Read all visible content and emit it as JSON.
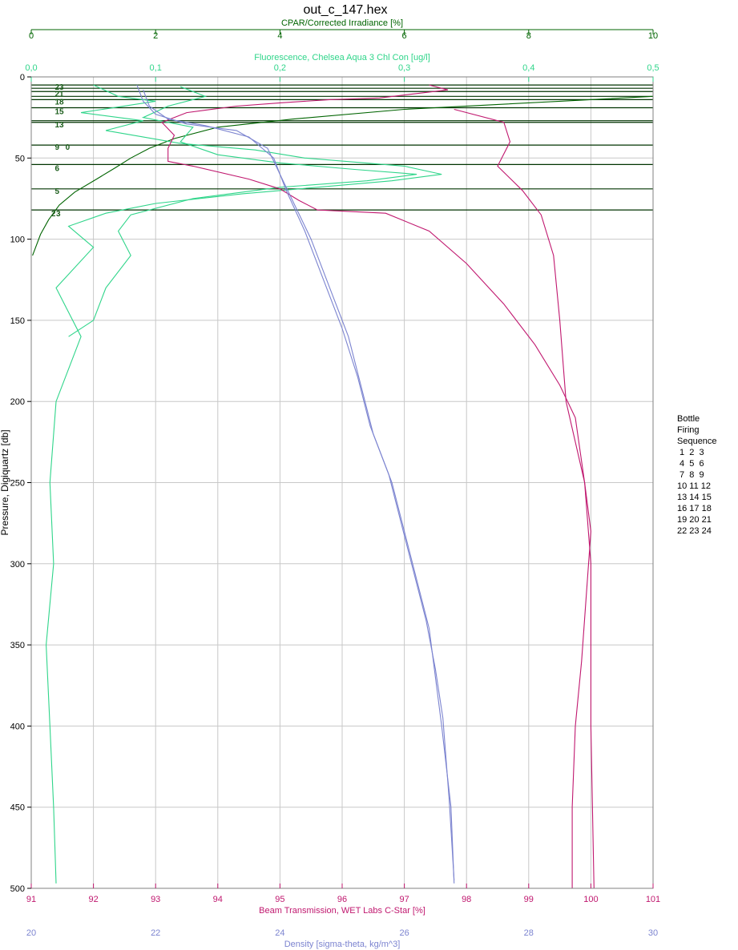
{
  "chart_data": {
    "type": "line",
    "title": "out_c_147.hex",
    "y_axis": {
      "label": "Pressure, Digiquartz [db]",
      "range": [
        0,
        500
      ],
      "inverted": true,
      "ticks": [
        0,
        50,
        100,
        150,
        200,
        250,
        300,
        350,
        400,
        450,
        500
      ],
      "color": "#000000"
    },
    "x_axes": [
      {
        "id": "cpar",
        "position": "top1",
        "label": "CPAR/Corrected Irradiance [%]",
        "range": [
          0,
          10
        ],
        "ticks": [
          0,
          2,
          4,
          6,
          8,
          10
        ],
        "tick_labels": [
          "0",
          "2",
          "4",
          "6",
          "8",
          "10"
        ],
        "color": "#006400"
      },
      {
        "id": "fluor",
        "position": "top2",
        "label": "Fluorescence, Chelsea Aqua 3 Chl Con [ug/l]",
        "range": [
          0,
          0.5
        ],
        "ticks": [
          0,
          0.1,
          0.2,
          0.3,
          0.4,
          0.5
        ],
        "tick_labels": [
          "0,0",
          "0,1",
          "0,2",
          "0,3",
          "0,4",
          "0,5"
        ],
        "color": "#2fd58a"
      },
      {
        "id": "trans",
        "position": "bottom1",
        "label": "Beam Transmission, WET Labs C-Star [%]",
        "range": [
          91,
          101
        ],
        "ticks": [
          91,
          92,
          93,
          94,
          95,
          96,
          97,
          98,
          99,
          100,
          101
        ],
        "tick_labels": [
          "91",
          "92",
          "93",
          "94",
          "95",
          "96",
          "97",
          "98",
          "99",
          "100",
          "101"
        ],
        "color": "#c0186f"
      },
      {
        "id": "dens",
        "position": "bottom2",
        "label": "Density [sigma-theta, kg/m^3]",
        "range": [
          20,
          30
        ],
        "ticks": [
          20,
          22,
          24,
          26,
          28,
          30
        ],
        "tick_labels": [
          "20",
          "22",
          "24",
          "26",
          "28",
          "30"
        ],
        "color": "#7c84d0"
      }
    ],
    "grid": true,
    "series": [
      {
        "axis": "cpar",
        "color": "#006400",
        "points": [
          [
            10,
            12
          ],
          [
            8.5,
            15
          ],
          [
            6,
            20
          ],
          [
            4.2,
            26
          ],
          [
            3.0,
            31
          ],
          [
            2.3,
            38
          ],
          [
            1.9,
            44
          ],
          [
            1.6,
            50
          ],
          [
            1.35,
            56
          ],
          [
            1.05,
            63
          ],
          [
            0.7,
            71
          ],
          [
            0.45,
            79
          ],
          [
            0.28,
            88
          ],
          [
            0.15,
            97
          ],
          [
            0.06,
            106
          ],
          [
            0.02,
            110
          ]
        ]
      },
      {
        "axis": "fluor",
        "color": "#2fd58a",
        "points": [
          [
            0.05,
            5
          ],
          [
            0.07,
            12
          ],
          [
            0.1,
            15
          ],
          [
            0.04,
            22
          ],
          [
            0.09,
            27
          ],
          [
            0.06,
            33
          ],
          [
            0.12,
            41
          ],
          [
            0.18,
            45
          ],
          [
            0.22,
            50
          ],
          [
            0.3,
            55
          ],
          [
            0.33,
            60
          ],
          [
            0.29,
            64
          ],
          [
            0.23,
            68
          ],
          [
            0.17,
            72
          ],
          [
            0.1,
            78
          ],
          [
            0.06,
            84
          ],
          [
            0.03,
            92
          ],
          [
            0.05,
            105
          ],
          [
            0.02,
            130
          ],
          [
            0.04,
            160
          ],
          [
            0.02,
            200
          ],
          [
            0.015,
            250
          ],
          [
            0.018,
            300
          ],
          [
            0.012,
            350
          ],
          [
            0.015,
            400
          ],
          [
            0.018,
            450
          ],
          [
            0.02,
            497
          ]
        ]
      },
      {
        "axis": "fluor",
        "color": "#2fd58a",
        "points": [
          [
            0.12,
            6
          ],
          [
            0.14,
            12
          ],
          [
            0.11,
            18
          ],
          [
            0.09,
            25
          ],
          [
            0.13,
            31
          ],
          [
            0.12,
            40
          ],
          [
            0.15,
            48
          ],
          [
            0.2,
            53
          ],
          [
            0.26,
            57
          ],
          [
            0.31,
            60
          ],
          [
            0.27,
            64
          ],
          [
            0.2,
            68
          ],
          [
            0.13,
            75
          ],
          [
            0.08,
            85
          ],
          [
            0.07,
            95
          ],
          [
            0.08,
            110
          ],
          [
            0.06,
            130
          ],
          [
            0.05,
            150
          ],
          [
            0.03,
            160
          ]
        ]
      },
      {
        "axis": "trans",
        "color": "#c0186f",
        "points": [
          [
            97.4,
            5
          ],
          [
            97.7,
            8
          ],
          [
            96.6,
            13
          ],
          [
            95.8,
            14
          ],
          [
            95.0,
            16
          ],
          [
            94.3,
            18
          ],
          [
            93.5,
            22
          ],
          [
            93.1,
            28
          ],
          [
            93.3,
            36
          ],
          [
            93.2,
            44
          ],
          [
            93.2,
            52
          ],
          [
            93.6,
            55
          ],
          [
            94.5,
            63
          ],
          [
            95.0,
            69
          ],
          [
            95.3,
            76
          ],
          [
            95.6,
            82
          ],
          [
            96.7,
            84
          ],
          [
            97.4,
            95
          ],
          [
            98.0,
            115
          ],
          [
            98.6,
            140
          ],
          [
            99.1,
            165
          ],
          [
            99.5,
            190
          ],
          [
            99.75,
            210
          ],
          [
            99.9,
            250
          ],
          [
            100.0,
            300
          ],
          [
            100.0,
            400
          ],
          [
            100.05,
            500
          ]
        ]
      },
      {
        "axis": "trans",
        "color": "#c0186f",
        "points": [
          [
            97.8,
            20
          ],
          [
            98.6,
            28
          ],
          [
            98.7,
            40
          ],
          [
            98.5,
            55
          ],
          [
            98.9,
            70
          ],
          [
            99.2,
            85
          ],
          [
            99.4,
            110
          ],
          [
            99.5,
            150
          ],
          [
            99.6,
            200
          ],
          [
            99.9,
            250
          ],
          [
            100.0,
            280
          ],
          [
            99.85,
            360
          ],
          [
            99.75,
            400
          ],
          [
            99.7,
            450
          ],
          [
            99.7,
            500
          ]
        ]
      },
      {
        "axis": "dens",
        "color": "#7c84d0",
        "points": [
          [
            21.7,
            5
          ],
          [
            21.8,
            15
          ],
          [
            22.0,
            23
          ],
          [
            22.5,
            29
          ],
          [
            23.3,
            33
          ],
          [
            23.8,
            44
          ],
          [
            24.0,
            60
          ],
          [
            24.25,
            80
          ],
          [
            24.5,
            100
          ],
          [
            24.8,
            130
          ],
          [
            25.1,
            160
          ],
          [
            25.3,
            190
          ],
          [
            25.5,
            220
          ],
          [
            25.8,
            250
          ],
          [
            26.0,
            280
          ],
          [
            26.2,
            310
          ],
          [
            26.4,
            340
          ],
          [
            26.5,
            370
          ],
          [
            26.6,
            400
          ],
          [
            26.75,
            450
          ],
          [
            26.8,
            497
          ]
        ]
      },
      {
        "axis": "dens",
        "color": "#7c84d0",
        "points": [
          [
            21.8,
            8
          ],
          [
            21.9,
            18
          ],
          [
            22.2,
            26
          ],
          [
            22.8,
            30
          ],
          [
            23.5,
            37
          ],
          [
            23.9,
            50
          ],
          [
            24.1,
            70
          ],
          [
            24.4,
            95
          ],
          [
            24.7,
            125
          ],
          [
            25.0,
            155
          ],
          [
            25.25,
            185
          ],
          [
            25.45,
            215
          ],
          [
            25.75,
            245
          ],
          [
            25.95,
            275
          ],
          [
            26.15,
            305
          ],
          [
            26.35,
            335
          ],
          [
            26.5,
            365
          ],
          [
            26.62,
            395
          ],
          [
            26.72,
            445
          ],
          [
            26.8,
            495
          ]
        ]
      }
    ],
    "bottle_levels": [
      5,
      7,
      9,
      12,
      14,
      19,
      27,
      28,
      42,
      54,
      69,
      82
    ],
    "bottle_labels": [
      {
        "text": "2",
        "x": 0.32,
        "p": 86
      },
      {
        "text": "3",
        "x": 0.4,
        "p": 86
      },
      {
        "text": "5",
        "x": 0.38,
        "p": 72
      },
      {
        "text": "6",
        "x": 0.38,
        "p": 58
      },
      {
        "text": "9",
        "x": 0.38,
        "p": 45
      },
      {
        "text": "0",
        "x": 0.55,
        "p": 45
      },
      {
        "text": "13",
        "x": 0.38,
        "p": 31
      },
      {
        "text": "15",
        "x": 0.38,
        "p": 23
      },
      {
        "text": "18",
        "x": 0.38,
        "p": 17
      },
      {
        "text": "21",
        "x": 0.38,
        "p": 12
      },
      {
        "text": "23",
        "x": 0.38,
        "p": 8
      }
    ],
    "legend": {
      "position": "right",
      "lines": [
        "Bottle",
        "Firing",
        "Sequence",
        " 1  2  3",
        " 4  5  6",
        " 7  8  9",
        "10 11 12",
        "13 14 15",
        "16 17 18",
        "19 20 21",
        "22 23 24"
      ]
    }
  }
}
